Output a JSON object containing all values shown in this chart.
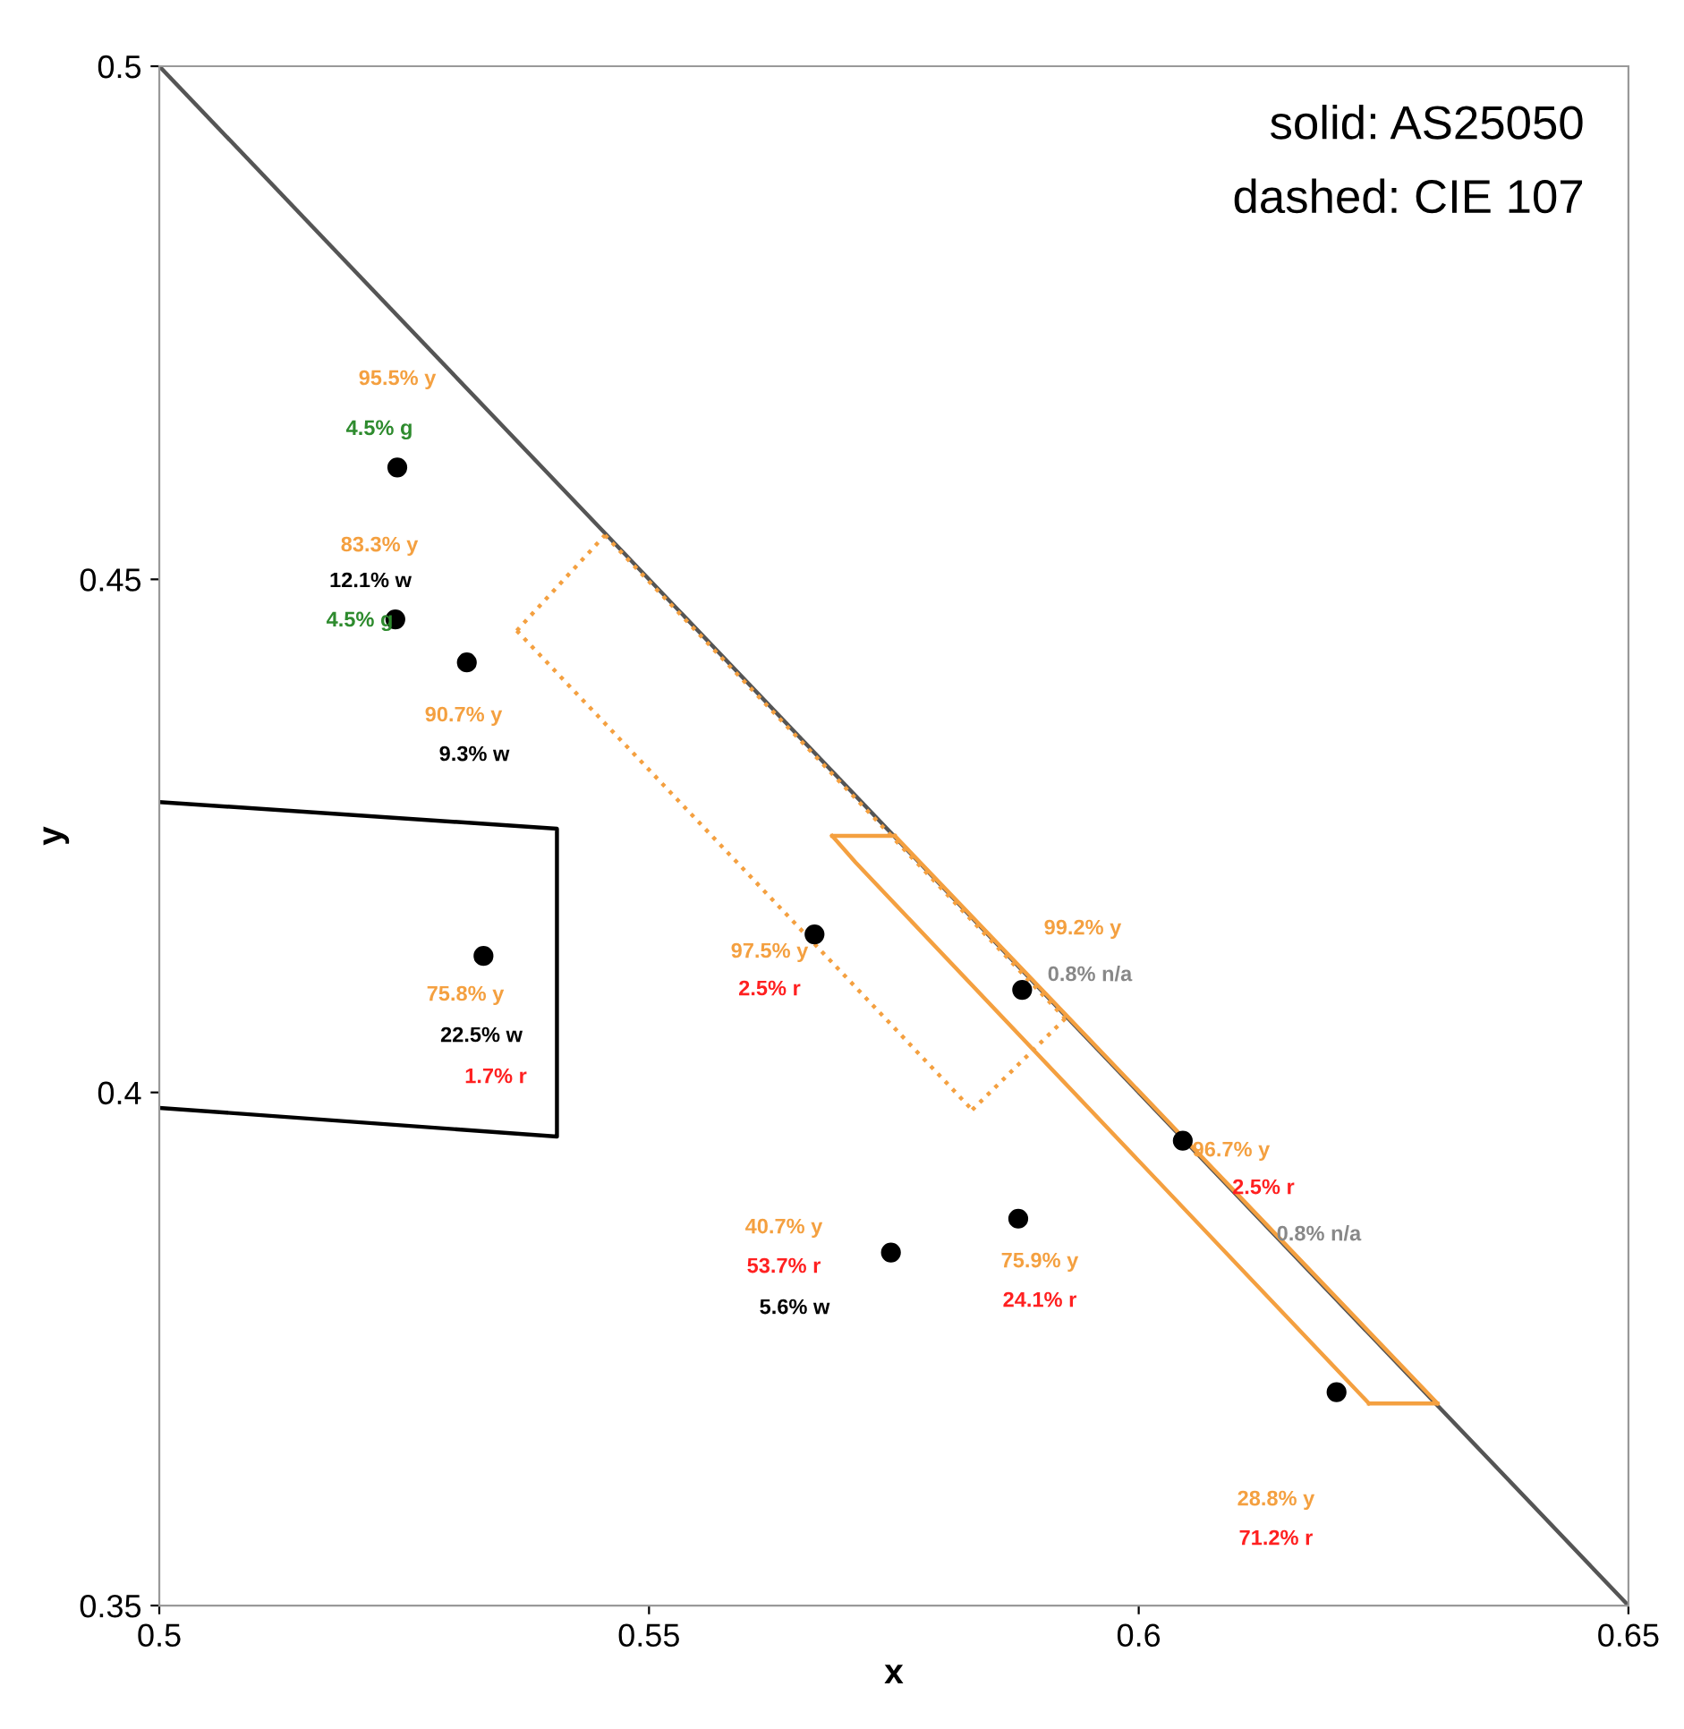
{
  "chart_data": {
    "type": "scatter",
    "xlabel": "x",
    "ylabel": "y",
    "xlim": [
      0.5,
      0.65
    ],
    "ylim": [
      0.35,
      0.5
    ],
    "xticks": [
      0.5,
      0.55,
      0.6,
      0.65
    ],
    "yticks": [
      0.35,
      0.4,
      0.45,
      0.5
    ],
    "grid": false,
    "marker": "circle",
    "series": [
      {
        "type": "line",
        "color": "#555555",
        "line_style": "solid",
        "marker": "none",
        "x": [
          0.5,
          0.65
        ],
        "values": [
          0.5,
          0.35
        ]
      },
      {
        "type": "line",
        "color": "#000000",
        "line_style": "solid",
        "marker": "none",
        "x": [
          0.5,
          0.5406,
          0.5406,
          0.5
        ],
        "values": [
          0.4283,
          0.4257,
          0.3957,
          0.3985
        ]
      },
      {
        "type": "line",
        "color": "#f4a040",
        "line_style": "solid",
        "marker": "none",
        "x": [
          0.5687,
          0.5751
        ],
        "values": [
          0.425,
          0.425
        ]
      },
      {
        "type": "line",
        "color": "#f4a040",
        "line_style": "solid",
        "marker": "none",
        "x": [
          0.5751,
          0.6305
        ],
        "values": [
          0.425,
          0.3697
        ]
      },
      {
        "type": "line",
        "color": "#f4a040",
        "line_style": "solid",
        "marker": "none",
        "x": [
          0.6235,
          0.6305
        ],
        "values": [
          0.3697,
          0.3697
        ]
      },
      {
        "type": "line",
        "color": "#f4a040",
        "line_style": "solid",
        "marker": "none",
        "x": [
          0.5687,
          0.5711,
          0.6235
        ],
        "values": [
          0.425,
          0.4224,
          0.3697
        ]
      },
      {
        "type": "line",
        "color": "#f4a040",
        "line_style": "dotted",
        "marker": "none",
        "x": [
          0.5365,
          0.5455
        ],
        "values": [
          0.445,
          0.4543
        ]
      },
      {
        "type": "line",
        "color": "#f4a040",
        "line_style": "dotted",
        "marker": "none",
        "x": [
          0.5455,
          0.5925
        ],
        "values": [
          0.4543,
          0.4072
        ]
      },
      {
        "type": "line",
        "color": "#f4a040",
        "line_style": "dotted",
        "marker": "none",
        "x": [
          0.583,
          0.5925
        ],
        "values": [
          0.3983,
          0.4072
        ]
      },
      {
        "type": "line",
        "color": "#f4a040",
        "line_style": "dotted",
        "marker": "none",
        "x": [
          0.5365,
          0.583
        ],
        "values": [
          0.445,
          0.3983
        ]
      },
      {
        "color": "#000000",
        "x": [
          0.5243,
          0.5241,
          0.5314,
          0.5331,
          0.5669,
          0.5881,
          0.6045,
          0.5877,
          0.5747,
          0.6202
        ],
        "values": [
          0.4609,
          0.4461,
          0.4419,
          0.4133,
          0.4154,
          0.41,
          0.3953,
          0.3877,
          0.3844,
          0.3708
        ]
      }
    ],
    "annotations": [
      "solid: AS25050",
      "dashed: CIE 107",
      "95.5% y",
      "4.5% g",
      "83.3% y",
      "12.1% w",
      "4.5% g",
      "90.7% y",
      "9.3% w",
      "75.8% y",
      "22.5% w",
      "1.7% r",
      "97.5% y",
      "2.5% r",
      "99.2% y",
      "0.8% n/a",
      "96.7% y",
      "2.5% r",
      "0.8% n/a",
      "40.7% y",
      "53.7% r",
      "5.6% w",
      "75.9% y",
      "24.1% r",
      "28.8% y",
      "71.2% r"
    ]
  }
}
